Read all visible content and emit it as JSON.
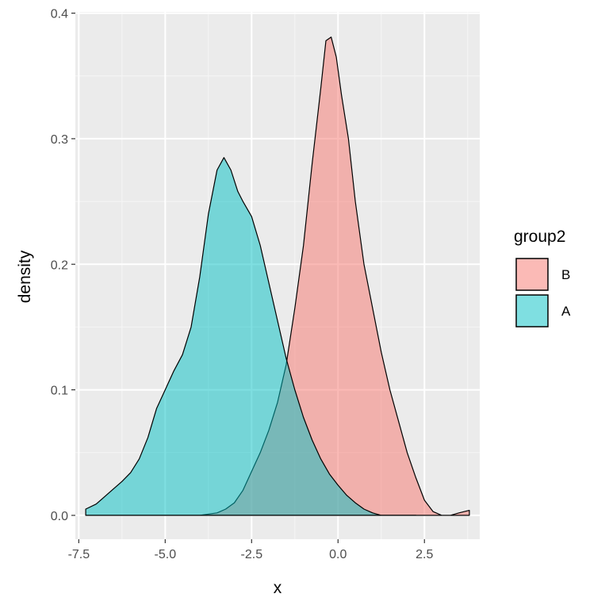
{
  "chart_data": {
    "type": "area",
    "subtype": "density",
    "title": "",
    "xlabel": "x",
    "ylabel": "density",
    "xlim": [
      -7.6,
      4.1
    ],
    "ylim": [
      -0.019,
      0.401
    ],
    "x_ticks": [
      -7.5,
      -5.0,
      -2.5,
      0.0,
      2.5
    ],
    "x_tick_labels": [
      "-7.5",
      "-5.0",
      "-2.5",
      "0.0",
      "2.5"
    ],
    "y_ticks": [
      0.0,
      0.1,
      0.2,
      0.3,
      0.4
    ],
    "y_tick_labels": [
      "0.0",
      "0.1",
      "0.2",
      "0.3",
      "0.4"
    ],
    "grid": true,
    "legend": {
      "title": "group2",
      "position": "right"
    },
    "series": [
      {
        "name": "B",
        "color": "#F8766D",
        "x": [
          -7.3,
          -4.0,
          -3.5,
          -3.25,
          -3.0,
          -2.75,
          -2.5,
          -2.25,
          -2.0,
          -1.75,
          -1.5,
          -1.25,
          -1.0,
          -0.75,
          -0.5,
          -0.35,
          -0.2,
          -0.05,
          0.1,
          0.3,
          0.5,
          0.75,
          1.0,
          1.25,
          1.5,
          1.75,
          2.0,
          2.25,
          2.5,
          2.75,
          3.0,
          3.25,
          3.5,
          3.8
        ],
        "y": [
          0.0,
          0.0,
          0.002,
          0.005,
          0.01,
          0.02,
          0.035,
          0.05,
          0.068,
          0.09,
          0.12,
          0.165,
          0.215,
          0.28,
          0.34,
          0.378,
          0.381,
          0.365,
          0.335,
          0.3,
          0.25,
          0.2,
          0.165,
          0.13,
          0.1,
          0.075,
          0.05,
          0.03,
          0.012,
          0.003,
          0.0,
          0.0,
          0.002,
          0.004
        ]
      },
      {
        "name": "A",
        "color": "#00BFC4",
        "x": [
          -7.3,
          -7.0,
          -6.75,
          -6.5,
          -6.25,
          -6.0,
          -5.75,
          -5.5,
          -5.25,
          -5.0,
          -4.75,
          -4.5,
          -4.25,
          -4.0,
          -3.75,
          -3.5,
          -3.3,
          -3.1,
          -2.9,
          -2.75,
          -2.5,
          -2.25,
          -2.0,
          -1.75,
          -1.5,
          -1.25,
          -1.0,
          -0.75,
          -0.5,
          -0.25,
          0.0,
          0.25,
          0.5,
          0.75,
          1.0,
          1.25,
          1.5,
          1.75,
          2.0,
          2.25
        ],
        "y": [
          0.005,
          0.009,
          0.015,
          0.021,
          0.027,
          0.034,
          0.045,
          0.062,
          0.085,
          0.1,
          0.115,
          0.128,
          0.15,
          0.19,
          0.24,
          0.275,
          0.285,
          0.275,
          0.258,
          0.25,
          0.238,
          0.215,
          0.185,
          0.155,
          0.125,
          0.1,
          0.078,
          0.06,
          0.045,
          0.033,
          0.024,
          0.016,
          0.01,
          0.005,
          0.002,
          0.0,
          0.0,
          0.0,
          0.0,
          0.0
        ]
      }
    ]
  }
}
